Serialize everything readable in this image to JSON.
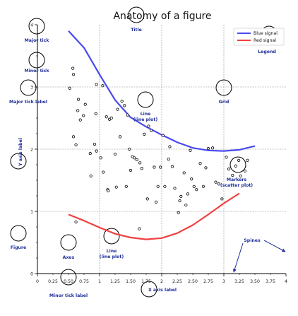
{
  "chart_data": {
    "type": "line",
    "title": "Anatomy of a figure",
    "xlabel": "X axis label",
    "ylabel": "Y axis label",
    "xlim": [
      0,
      4
    ],
    "ylim": [
      0,
      4
    ],
    "grid": true,
    "legend_position": "top-right",
    "major_x_ticks": [
      0,
      1,
      2,
      3,
      4
    ],
    "major_y_ticks": [
      0,
      1,
      2,
      3,
      4
    ],
    "minor_x_tick_labels": [
      "0.25",
      "0.50",
      "0.75",
      "1.25",
      "1.50",
      "1.75",
      "2.25",
      "2.50",
      "2.75",
      "3.25",
      "3.50",
      "3.75"
    ],
    "minor_x_ticks": [
      0.25,
      0.5,
      0.75,
      1.25,
      1.5,
      1.75,
      2.25,
      2.5,
      2.75,
      3.25,
      3.5,
      3.75
    ],
    "minor_y_ticks": [
      0.25,
      0.5,
      0.75,
      1.25,
      1.5,
      1.75,
      2.25,
      2.5,
      2.75,
      3.25,
      3.5,
      3.75
    ],
    "series": [
      {
        "name": "Blue signal",
        "color": "#4a4af0",
        "x": [
          0.5,
          0.75,
          1.0,
          1.25,
          1.5,
          1.75,
          2.0,
          2.25,
          2.5,
          2.75,
          3.0,
          3.25,
          3.5
        ],
        "y": [
          3.9,
          3.63,
          3.2,
          2.79,
          2.51,
          2.36,
          2.23,
          2.11,
          2.02,
          1.98,
          1.97,
          1.99,
          2.05
        ]
      },
      {
        "name": "Red signal",
        "color": "#f04040",
        "x": [
          0.5,
          0.75,
          1.0,
          1.25,
          1.5,
          1.75,
          2.0,
          2.25,
          2.5,
          2.75,
          3.0,
          3.25
        ],
        "y": [
          0.95,
          0.85,
          0.74,
          0.64,
          0.58,
          0.55,
          0.57,
          0.65,
          0.78,
          0.95,
          1.13,
          1.29
        ]
      }
    ],
    "scatter": {
      "x": [
        0.57,
        0.58,
        0.52,
        0.66,
        0.95,
        0.94,
        0.74,
        0.65,
        0.77,
        0.58,
        0.62,
        0.69,
        0.85,
        0.86,
        0.95,
        1.02,
        1.06,
        1.11,
        1.13,
        1.27,
        1.25,
        1.29,
        1.4,
        1.45,
        1.5,
        1.53,
        1.56,
        1.6,
        1.65,
        1.68,
        1.72,
        1.79,
        1.83,
        1.88,
        1.91,
        1.94,
        1.98,
        2.05,
        2.11,
        2.17,
        2.21,
        2.27,
        2.31,
        2.36,
        2.39,
        2.42,
        2.48,
        2.52,
        2.56,
        2.62,
        2.67,
        2.71,
        2.75,
        2.82,
        2.87,
        2.92,
        2.97,
        3.04,
        3.08,
        3.14,
        3.19,
        3.24,
        3.27,
        3.34,
        3.38,
        1.05,
        1.16,
        1.19,
        1.36,
        1.33,
        1.14,
        2.02,
        1.77,
        1.64,
        2.13,
        0.92,
        1.48,
        1.43,
        2.29,
        2.46,
        0.62
      ],
      "y": [
        3.3,
        3.2,
        2.98,
        2.8,
        3.04,
        2.57,
        2.54,
        2.62,
        2.72,
        2.2,
        2.07,
        2.47,
        1.93,
        1.57,
        1.97,
        1.86,
        1.63,
        2.52,
        1.35,
        1.39,
        1.92,
        2.64,
        2.7,
        2.55,
        1.66,
        1.88,
        1.86,
        1.83,
        1.78,
        1.69,
        2.24,
        2.37,
        2.3,
        1.71,
        1.15,
        1.4,
        1.71,
        1.4,
        1.84,
        1.72,
        1.37,
        0.98,
        1.24,
        1.62,
        1.1,
        1.28,
        1.52,
        1.4,
        1.35,
        1.77,
        1.4,
        1.7,
        2.01,
        2.02,
        1.47,
        1.44,
        1.2,
        1.87,
        1.68,
        1.58,
        1.73,
        1.82,
        1.57,
        1.65,
        1.82,
        3.02,
        2.48,
        2.5,
        2.77,
        2.2,
        1.33,
        2.22,
        1.2,
        0.72,
        2.04,
        2.08,
        2.0,
        1.4,
        1.17,
        1.98,
        0.83
      ]
    },
    "annotations": [
      {
        "label": "Major tick",
        "sub": ""
      },
      {
        "label": "Minor tick",
        "sub": ""
      },
      {
        "label": "Major tick label",
        "sub": ""
      },
      {
        "label": "Y axis label",
        "sub": ""
      },
      {
        "label": "Figure",
        "sub": ""
      },
      {
        "label": "Axes",
        "sub": ""
      },
      {
        "label": "Title",
        "sub": ""
      },
      {
        "label": "Line",
        "sub": "(line plot)"
      },
      {
        "label": "Line",
        "sub": "(line plot)"
      },
      {
        "label": "Grid",
        "sub": ""
      },
      {
        "label": "Legend",
        "sub": ""
      },
      {
        "label": "Markers",
        "sub": "(scatter plot)"
      },
      {
        "label": "Spines",
        "sub": ""
      },
      {
        "label": "Minor tick label",
        "sub": ""
      },
      {
        "label": "X axis label",
        "sub": ""
      }
    ]
  },
  "colors": {
    "annotation": "#1f2f9a",
    "axis": "#000000",
    "grid": "#8a8a8a"
  }
}
